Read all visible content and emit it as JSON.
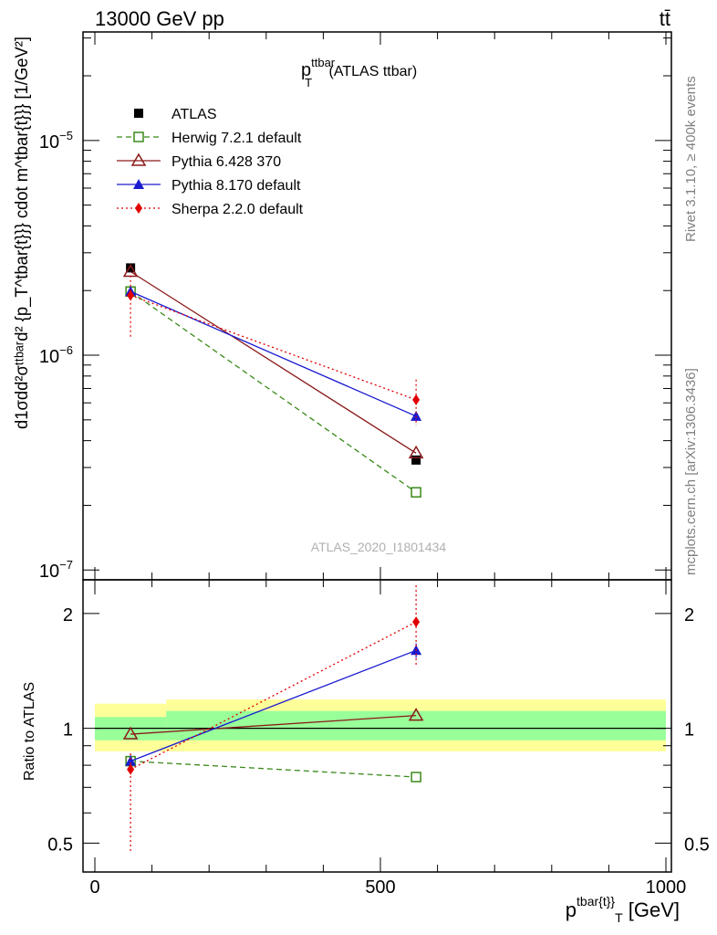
{
  "header": {
    "left_title": "13000 GeV pp",
    "right_title": "tt̄"
  },
  "side_labels": {
    "rivet": "Rivet 3.1.10, ≥ 400k events",
    "mcplots": "mcplots.cern.ch [arXiv:1306.3436]"
  },
  "chart_data": [
    {
      "type": "scatter",
      "panel": "main",
      "title_base": "p",
      "title_sub": "T",
      "title_sup": "ttbar",
      "title_suffix": " (ATLAS ttbar)",
      "watermark": "ATLAS_2020_I1801434",
      "ylabel": "d1σdd²σᵗᵗᵇᵃʳd² {p_T^tbar{t}}} cdot m^tbar{t}}} [1/GeV²]",
      "yscale": "log",
      "ylim": [
        9e-08,
        3.2e-05
      ],
      "xlim": [
        -25,
        1000
      ],
      "y_ticks": [
        {
          "value": 1e-05,
          "base": "10",
          "exp": "−5"
        },
        {
          "value": 1e-06,
          "base": "10",
          "exp": "−6"
        },
        {
          "value": 1e-07,
          "base": "10",
          "exp": "−7"
        }
      ],
      "x": [
        62.5,
        562.5
      ],
      "series": [
        {
          "name": "ATLAS",
          "marker": "square-filled",
          "color": "#000000",
          "line": "none",
          "values": [
            2.55e-06,
            3.25e-07
          ],
          "err_low": [
            2.45e-06,
            3.15e-07
          ],
          "err_high": [
            2.65e-06,
            3.35e-07
          ]
        },
        {
          "name": "Herwig 7.2.1 default",
          "marker": "square-open",
          "color": "#3a8a1a",
          "line": "dashed",
          "values": [
            1.98e-06,
            2.3e-07
          ]
        },
        {
          "name": "Pythia 6.428 370",
          "marker": "triangle-open",
          "color": "#8b1a1a",
          "line": "solid",
          "values": [
            2.45e-06,
            3.5e-07
          ]
        },
        {
          "name": "Pythia 8.170 default",
          "marker": "triangle-filled",
          "color": "#1a1ad0",
          "line": "solid",
          "values": [
            1.98e-06,
            5.2e-07
          ],
          "err_low": [
            1.9e-06,
            4.95e-07
          ],
          "err_high": [
            2.06e-06,
            5.45e-07
          ]
        },
        {
          "name": "Sherpa 2.2.0 default",
          "marker": "diamond-filled",
          "color": "#e00000",
          "line": "dotted",
          "values": [
            1.9e-06,
            6.2e-07
          ],
          "err_low": [
            1.2e-06,
            4.7e-07
          ],
          "err_high": [
            2.35e-06,
            7.7e-07
          ]
        }
      ]
    },
    {
      "type": "scatter",
      "panel": "ratio",
      "ylabel": "Ratio to ATLAS",
      "xlabel_base": "p",
      "xlabel_sup": "tbar{t}",
      "xlabel_mid": "}",
      "xlabel_sub": "T",
      "xlabel_unit": " [GeV]",
      "yscale": "log",
      "ylim": [
        0.42,
        2.45
      ],
      "xlim": [
        -25,
        1000
      ],
      "y_ticks": [
        {
          "value": 0.5,
          "label": "0.5"
        },
        {
          "value": 1,
          "label": "1"
        },
        {
          "value": 2,
          "label": "2"
        }
      ],
      "x_ticks": [
        {
          "value": 0,
          "label": "0"
        },
        {
          "value": 500,
          "label": "500"
        },
        {
          "value": 1000,
          "label": "1000"
        }
      ],
      "bands": [
        {
          "name": "stat-syst",
          "color": "#ffff99",
          "bins": [
            [
              0,
              125,
              0.87,
              1.16
            ],
            [
              125,
              1000,
              0.87,
              1.19
            ]
          ]
        },
        {
          "name": "stat",
          "color": "#99ff99",
          "bins": [
            [
              0,
              125,
              0.93,
              1.07
            ],
            [
              125,
              1000,
              0.93,
              1.11
            ]
          ]
        }
      ],
      "x": [
        62.5,
        562.5
      ],
      "series": [
        {
          "name": "Herwig 7.2.1 default",
          "marker": "square-open",
          "color": "#3a8a1a",
          "line": "dashed",
          "values": [
            0.82,
            0.745
          ],
          "err_low": [
            0.8,
            0.725
          ],
          "err_high": [
            0.84,
            0.765
          ]
        },
        {
          "name": "Pythia 6.428 370",
          "marker": "triangle-open",
          "color": "#8b1a1a",
          "line": "solid",
          "values": [
            0.965,
            1.08
          ]
        },
        {
          "name": "Pythia 8.170 default",
          "marker": "triangle-filled",
          "color": "#1a1ad0",
          "line": "solid",
          "values": [
            0.82,
            1.6
          ],
          "err_low": [
            0.79,
            1.53
          ],
          "err_high": [
            0.85,
            1.67
          ]
        },
        {
          "name": "Sherpa 2.2.0 default",
          "marker": "diamond-filled",
          "color": "#e00000",
          "line": "dotted",
          "values": [
            0.78,
            1.9
          ],
          "err_low": [
            0.47,
            1.45
          ],
          "err_high": [
            0.86,
            2.37
          ]
        }
      ]
    }
  ]
}
